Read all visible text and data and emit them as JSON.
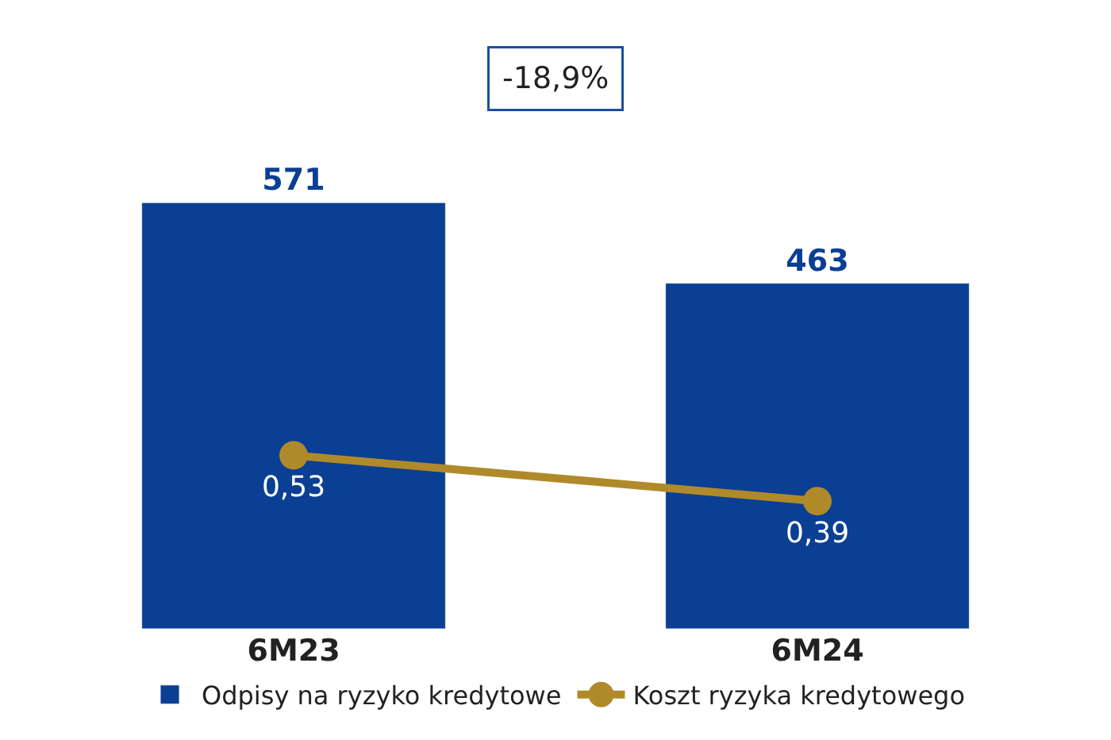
{
  "chart_data": {
    "type": "bar",
    "categories": [
      "6M23",
      "6M24"
    ],
    "series": [
      {
        "name": "Odpisy na ryzyko kredytowe",
        "color": "#0a3f94",
        "values": [
          571,
          463
        ],
        "value_labels": [
          "571",
          "463"
        ]
      },
      {
        "name": "Koszt ryzyka kredytowego",
        "type": "line",
        "axis": "y2",
        "color": "#b08a2a",
        "values": [
          0.53,
          0.39
        ],
        "value_labels": [
          "0,53",
          "0,39"
        ]
      }
    ],
    "tick_labels": "x",
    "legend": "bottom",
    "marker": "circle",
    "annotations": [
      "-18,9%"
    ]
  }
}
